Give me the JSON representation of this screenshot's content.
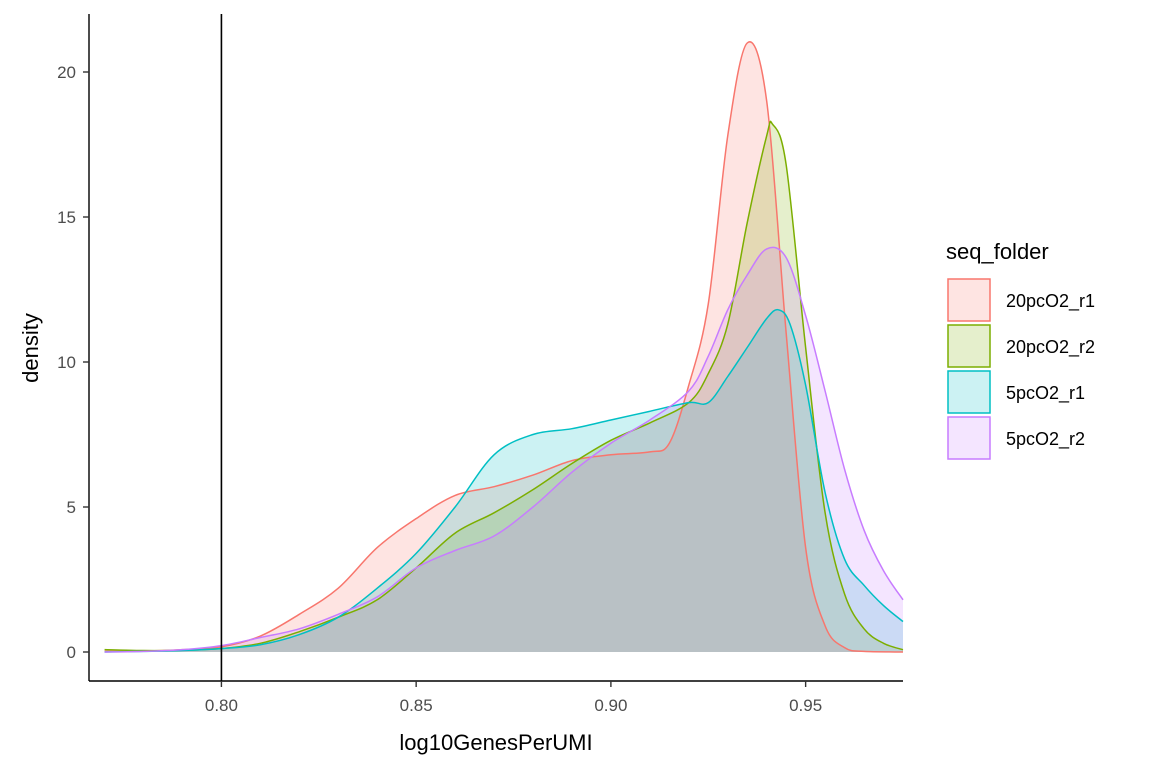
{
  "chart_data": {
    "type": "area",
    "xlabel": "log10GenesPerUMI",
    "ylabel": "density",
    "xlim": [
      0.766,
      0.975
    ],
    "ylim": [
      -1,
      22
    ],
    "x_ticks": [
      0.8,
      0.85,
      0.9,
      0.95
    ],
    "x_tick_labels": [
      "0.80",
      "0.85",
      "0.90",
      "0.95"
    ],
    "y_ticks": [
      0,
      5,
      10,
      15,
      20
    ],
    "y_tick_labels": [
      "0",
      "5",
      "10",
      "15",
      "20"
    ],
    "vline_x": 0.8,
    "grid": false,
    "fill_opacity": 0.2,
    "legend": {
      "title": "seq_folder",
      "placement": "right"
    },
    "series": [
      {
        "name": "20pcO2_r1",
        "color": "#F8766D",
        "points": [
          [
            0.77,
            0.02
          ],
          [
            0.78,
            0.03
          ],
          [
            0.79,
            0.08
          ],
          [
            0.8,
            0.18
          ],
          [
            0.81,
            0.55
          ],
          [
            0.82,
            1.3
          ],
          [
            0.83,
            2.2
          ],
          [
            0.84,
            3.6
          ],
          [
            0.85,
            4.6
          ],
          [
            0.86,
            5.4
          ],
          [
            0.87,
            5.7
          ],
          [
            0.88,
            6.1
          ],
          [
            0.89,
            6.6
          ],
          [
            0.9,
            6.8
          ],
          [
            0.91,
            6.9
          ],
          [
            0.915,
            7.2
          ],
          [
            0.92,
            9.2
          ],
          [
            0.925,
            12.0
          ],
          [
            0.93,
            17.8
          ],
          [
            0.935,
            21.0
          ],
          [
            0.94,
            19.0
          ],
          [
            0.945,
            11.0
          ],
          [
            0.95,
            3.6
          ],
          [
            0.955,
            0.9
          ],
          [
            0.96,
            0.15
          ],
          [
            0.965,
            0.02
          ],
          [
            0.975,
            0.0
          ]
        ]
      },
      {
        "name": "20pcO2_r2",
        "color": "#7CAE00",
        "points": [
          [
            0.77,
            0.08
          ],
          [
            0.78,
            0.05
          ],
          [
            0.79,
            0.06
          ],
          [
            0.8,
            0.12
          ],
          [
            0.81,
            0.3
          ],
          [
            0.82,
            0.7
          ],
          [
            0.83,
            1.2
          ],
          [
            0.84,
            1.8
          ],
          [
            0.85,
            2.9
          ],
          [
            0.86,
            4.1
          ],
          [
            0.87,
            4.8
          ],
          [
            0.88,
            5.6
          ],
          [
            0.89,
            6.5
          ],
          [
            0.9,
            7.3
          ],
          [
            0.91,
            7.9
          ],
          [
            0.92,
            8.6
          ],
          [
            0.925,
            9.6
          ],
          [
            0.93,
            11.3
          ],
          [
            0.935,
            14.8
          ],
          [
            0.94,
            17.8
          ],
          [
            0.9415,
            18.2
          ],
          [
            0.945,
            16.8
          ],
          [
            0.95,
            10.5
          ],
          [
            0.955,
            4.8
          ],
          [
            0.96,
            2.0
          ],
          [
            0.965,
            0.8
          ],
          [
            0.97,
            0.3
          ],
          [
            0.975,
            0.08
          ]
        ]
      },
      {
        "name": "5pcO2_r1",
        "color": "#00BFC4",
        "points": [
          [
            0.77,
            0.0
          ],
          [
            0.78,
            0.02
          ],
          [
            0.79,
            0.05
          ],
          [
            0.8,
            0.12
          ],
          [
            0.81,
            0.25
          ],
          [
            0.82,
            0.6
          ],
          [
            0.83,
            1.2
          ],
          [
            0.84,
            2.2
          ],
          [
            0.85,
            3.4
          ],
          [
            0.86,
            5.0
          ],
          [
            0.87,
            6.8
          ],
          [
            0.88,
            7.5
          ],
          [
            0.89,
            7.7
          ],
          [
            0.9,
            8.0
          ],
          [
            0.91,
            8.3
          ],
          [
            0.92,
            8.6
          ],
          [
            0.925,
            8.6
          ],
          [
            0.93,
            9.5
          ],
          [
            0.935,
            10.5
          ],
          [
            0.94,
            11.5
          ],
          [
            0.943,
            11.8
          ],
          [
            0.946,
            11.3
          ],
          [
            0.95,
            9.2
          ],
          [
            0.955,
            5.5
          ],
          [
            0.96,
            3.2
          ],
          [
            0.965,
            2.3
          ],
          [
            0.97,
            1.6
          ],
          [
            0.975,
            1.05
          ]
        ]
      },
      {
        "name": "5pcO2_r2",
        "color": "#C77CFF",
        "points": [
          [
            0.77,
            0.0
          ],
          [
            0.78,
            0.02
          ],
          [
            0.79,
            0.08
          ],
          [
            0.8,
            0.22
          ],
          [
            0.81,
            0.5
          ],
          [
            0.82,
            0.8
          ],
          [
            0.83,
            1.3
          ],
          [
            0.84,
            1.9
          ],
          [
            0.85,
            2.9
          ],
          [
            0.86,
            3.5
          ],
          [
            0.87,
            4.0
          ],
          [
            0.88,
            5.0
          ],
          [
            0.89,
            6.2
          ],
          [
            0.9,
            7.2
          ],
          [
            0.91,
            8.0
          ],
          [
            0.92,
            9.0
          ],
          [
            0.925,
            10.2
          ],
          [
            0.93,
            11.8
          ],
          [
            0.935,
            13.0
          ],
          [
            0.94,
            13.9
          ],
          [
            0.945,
            13.6
          ],
          [
            0.95,
            11.6
          ],
          [
            0.955,
            9.0
          ],
          [
            0.96,
            6.3
          ],
          [
            0.965,
            4.2
          ],
          [
            0.97,
            2.8
          ],
          [
            0.975,
            1.8
          ]
        ]
      }
    ]
  }
}
